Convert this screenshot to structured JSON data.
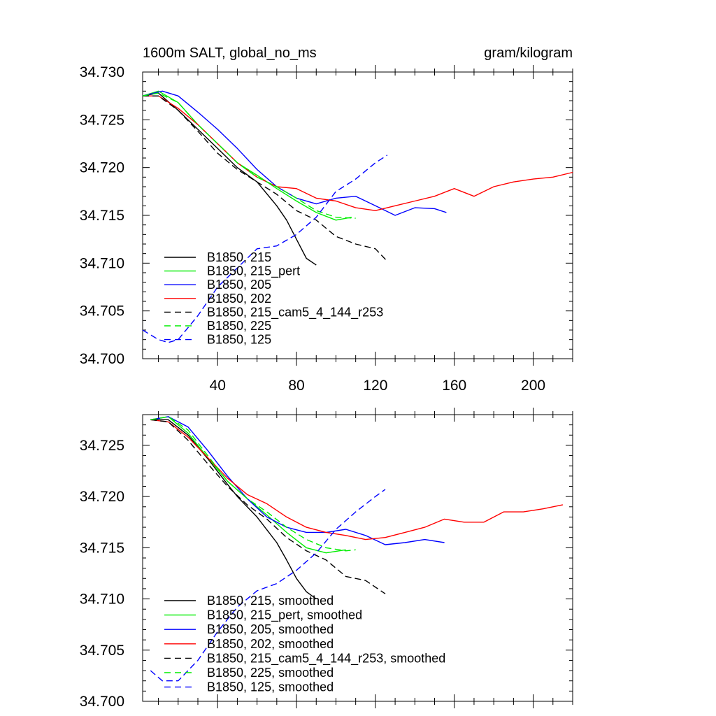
{
  "chart_data": [
    {
      "type": "line",
      "title": "1600m SALT, global_no_ms",
      "units": "gram/kilogram",
      "xlim": [
        2,
        220
      ],
      "ylim": [
        34.7,
        34.73
      ],
      "xticks": [
        40,
        80,
        120,
        160,
        200
      ],
      "xtick_labels": [
        "40",
        "80",
        "120",
        "160",
        "200"
      ],
      "yticks": [
        34.7,
        34.705,
        34.71,
        34.715,
        34.72,
        34.725,
        34.73
      ],
      "ytick_labels": [
        "34.700",
        "34.705",
        "34.710",
        "34.715",
        "34.720",
        "34.725",
        "34.730"
      ],
      "legend_position": "bottom-left",
      "series": [
        {
          "name": "B1850, 215",
          "color": "#000000",
          "dash": "solid",
          "x": [
            2,
            10,
            20,
            30,
            40,
            50,
            60,
            70,
            75,
            80,
            85,
            90
          ],
          "y": [
            34.7275,
            34.7278,
            34.726,
            34.724,
            34.722,
            34.72,
            34.7185,
            34.716,
            34.7145,
            34.7125,
            34.7105,
            34.7098
          ]
        },
        {
          "name": "B1850, 215_pert",
          "color": "#00ee00",
          "dash": "solid",
          "x": [
            2,
            10,
            20,
            30,
            40,
            50,
            60,
            70,
            80,
            90,
            100,
            108
          ],
          "y": [
            34.7275,
            34.728,
            34.7268,
            34.7245,
            34.7225,
            34.7205,
            34.7192,
            34.7178,
            34.7165,
            34.7153,
            34.7145,
            34.7148
          ]
        },
        {
          "name": "B1850, 205",
          "color": "#0000ff",
          "dash": "solid",
          "x": [
            2,
            12,
            20,
            30,
            40,
            50,
            60,
            70,
            80,
            90,
            100,
            110,
            120,
            130,
            140,
            150,
            156
          ],
          "y": [
            34.7275,
            34.728,
            34.7275,
            34.7258,
            34.724,
            34.722,
            34.7198,
            34.718,
            34.7168,
            34.7162,
            34.7168,
            34.717,
            34.716,
            34.715,
            34.7158,
            34.7157,
            34.7153
          ]
        },
        {
          "name": "B1850, 202",
          "color": "#ff0000",
          "dash": "solid",
          "x": [
            2,
            10,
            20,
            30,
            40,
            50,
            60,
            70,
            80,
            90,
            100,
            110,
            120,
            130,
            140,
            150,
            160,
            170,
            180,
            190,
            200,
            210,
            220
          ],
          "y": [
            34.7275,
            34.7275,
            34.7262,
            34.7245,
            34.7225,
            34.7205,
            34.719,
            34.718,
            34.7178,
            34.7168,
            34.7165,
            34.7158,
            34.7155,
            34.716,
            34.7165,
            34.717,
            34.7178,
            34.717,
            34.718,
            34.7185,
            34.7188,
            34.719,
            34.7195
          ]
        },
        {
          "name": "B1850, 215_cam5_4_144_r253",
          "color": "#000000",
          "dash": "dashed",
          "x": [
            2,
            10,
            20,
            30,
            40,
            50,
            60,
            70,
            80,
            90,
            100,
            110,
            120,
            126
          ],
          "y": [
            34.7275,
            34.7275,
            34.726,
            34.7238,
            34.7215,
            34.7198,
            34.7185,
            34.7172,
            34.7155,
            34.7145,
            34.7128,
            34.712,
            34.7115,
            34.7102
          ]
        },
        {
          "name": "B1850, 225",
          "color": "#00ee00",
          "dash": "dashed",
          "x": [
            2,
            10,
            20,
            30,
            40,
            50,
            60,
            70,
            80,
            90,
            100,
            110
          ],
          "y": [
            34.7275,
            34.7278,
            34.7268,
            34.7245,
            34.7225,
            34.7205,
            34.719,
            34.718,
            34.7168,
            34.7155,
            34.7148,
            34.7147
          ]
        },
        {
          "name": "B1850, 125",
          "color": "#0000ff",
          "dash": "dashed",
          "x": [
            2,
            10,
            15,
            20,
            30,
            40,
            50,
            60,
            70,
            80,
            90,
            100,
            110,
            120,
            126
          ],
          "y": [
            34.703,
            34.702,
            34.7017,
            34.702,
            34.7045,
            34.7075,
            34.7095,
            34.7115,
            34.7118,
            34.713,
            34.7148,
            34.7175,
            34.7188,
            34.7205,
            34.7213
          ]
        }
      ]
    },
    {
      "type": "line",
      "title": "",
      "xlim": [
        2,
        220
      ],
      "ylim": [
        34.7,
        34.728
      ],
      "xticks": [
        40,
        80,
        120,
        160,
        200
      ],
      "xtick_labels": [],
      "yticks": [
        34.7,
        34.705,
        34.71,
        34.715,
        34.72,
        34.725
      ],
      "ytick_labels": [
        "34.700",
        "34.705",
        "34.710",
        "34.715",
        "34.720",
        "34.725"
      ],
      "legend_position": "bottom-left",
      "series": [
        {
          "name": "B1850, 215, smoothed",
          "color": "#000000",
          "dash": "solid",
          "x": [
            6,
            15,
            25,
            35,
            45,
            50,
            60,
            70,
            75,
            80,
            85,
            90
          ],
          "y": [
            34.7275,
            34.7275,
            34.726,
            34.7237,
            34.7212,
            34.72,
            34.718,
            34.7155,
            34.7138,
            34.712,
            34.7107,
            34.71
          ]
        },
        {
          "name": "B1850, 215_pert, smoothed",
          "color": "#00ee00",
          "dash": "solid",
          "x": [
            6,
            15,
            25,
            35,
            45,
            55,
            65,
            75,
            85,
            95,
            105
          ],
          "y": [
            34.7275,
            34.7278,
            34.7262,
            34.7238,
            34.7215,
            34.7198,
            34.7182,
            34.7165,
            34.715,
            34.7145,
            34.7148
          ]
        },
        {
          "name": "B1850, 205, smoothed",
          "color": "#0000ff",
          "dash": "solid",
          "x": [
            6,
            15,
            25,
            35,
            45,
            55,
            65,
            75,
            85,
            95,
            105,
            115,
            125,
            135,
            145,
            155
          ],
          "y": [
            34.7275,
            34.7278,
            34.7268,
            34.7245,
            34.722,
            34.7198,
            34.718,
            34.717,
            34.7165,
            34.7165,
            34.7168,
            34.7162,
            34.7153,
            34.7155,
            34.7158,
            34.7155
          ]
        },
        {
          "name": "B1850, 202, smoothed",
          "color": "#ff0000",
          "dash": "solid",
          "x": [
            6,
            15,
            25,
            35,
            45,
            55,
            65,
            75,
            85,
            95,
            105,
            115,
            125,
            135,
            145,
            155,
            165,
            175,
            185,
            195,
            205,
            215
          ],
          "y": [
            34.7275,
            34.7273,
            34.7258,
            34.7238,
            34.7218,
            34.7202,
            34.7193,
            34.718,
            34.717,
            34.7165,
            34.7162,
            34.7158,
            34.716,
            34.7165,
            34.717,
            34.7178,
            34.7175,
            34.7175,
            34.7185,
            34.7185,
            34.7188,
            34.7192
          ]
        },
        {
          "name": "B1850, 215_cam5_4_144_r253, smoothed",
          "color": "#000000",
          "dash": "dashed",
          "x": [
            6,
            15,
            25,
            35,
            45,
            55,
            65,
            75,
            85,
            95,
            105,
            115,
            125
          ],
          "y": [
            34.7275,
            34.7273,
            34.7255,
            34.7232,
            34.721,
            34.7192,
            34.7178,
            34.716,
            34.7147,
            34.7138,
            34.7122,
            34.7118,
            34.7105
          ]
        },
        {
          "name": "B1850, 225, smoothed",
          "color": "#00ee00",
          "dash": "dashed",
          "x": [
            6,
            15,
            25,
            35,
            45,
            55,
            65,
            75,
            85,
            95,
            105,
            110
          ],
          "y": [
            34.7275,
            34.7278,
            34.7265,
            34.724,
            34.7215,
            34.7198,
            34.7185,
            34.717,
            34.7158,
            34.715,
            34.7147,
            34.7148
          ]
        },
        {
          "name": "B1850, 125, smoothed",
          "color": "#0000ff",
          "dash": "dashed",
          "x": [
            6,
            12,
            20,
            30,
            40,
            50,
            60,
            70,
            80,
            90,
            100,
            110,
            120,
            125
          ],
          "y": [
            34.703,
            34.702,
            34.702,
            34.704,
            34.7068,
            34.7092,
            34.7108,
            34.7115,
            34.7128,
            34.7145,
            34.7168,
            34.7185,
            34.72,
            34.7207
          ]
        }
      ]
    }
  ]
}
